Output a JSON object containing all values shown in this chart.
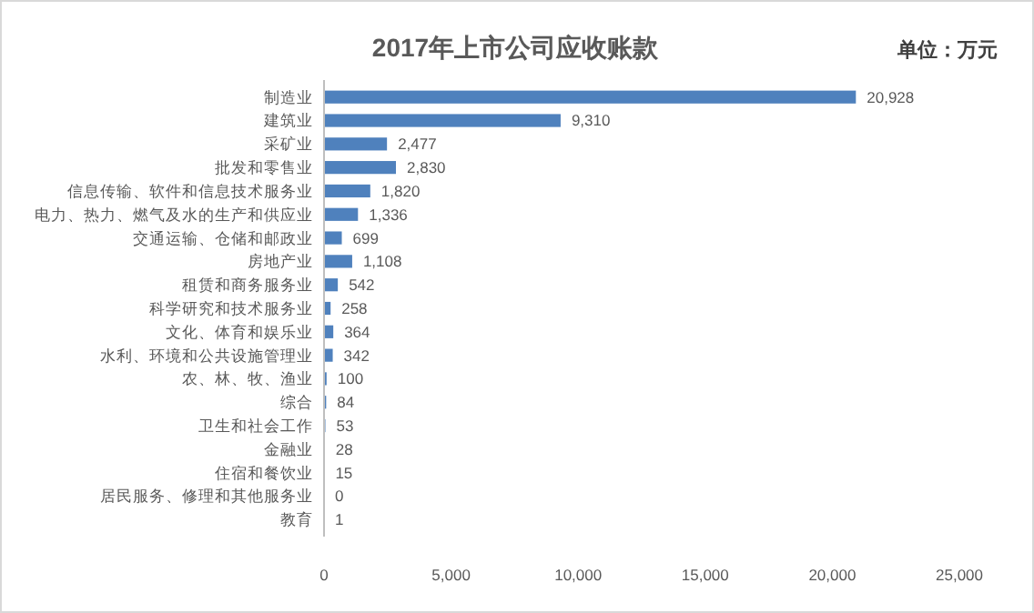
{
  "chart_data": {
    "type": "bar",
    "orientation": "horizontal",
    "title": "2017年上市公司应收账款",
    "annotations": [
      "单位：万元"
    ],
    "categories": [
      "制造业",
      "建筑业",
      "采矿业",
      "批发和零售业",
      "信息传输、软件和信息技术服务业",
      "电力、热力、燃气及水的生产和供应业",
      "交通运输、仓储和邮政业",
      "房地产业",
      "租赁和商务服务业",
      "科学研究和技术服务业",
      "文化、体育和娱乐业",
      "水利、环境和公共设施管理业",
      "农、林、牧、渔业",
      "综合",
      "卫生和社会工作",
      "金融业",
      "住宿和餐饮业",
      "居民服务、修理和其他服务业",
      "教育"
    ],
    "values": [
      20928,
      9310,
      2477,
      2830,
      1820,
      1336,
      699,
      1108,
      542,
      258,
      364,
      342,
      100,
      84,
      53,
      28,
      15,
      0,
      1
    ],
    "value_labels": [
      "20,928",
      "9,310",
      "2,477",
      "2,830",
      "1,820",
      "1,336",
      "699",
      "1,108",
      "542",
      "258",
      "364",
      "342",
      "100",
      "84",
      "53",
      "28",
      "15",
      "0",
      "1"
    ],
    "color": "#4f81bd",
    "xlim": [
      0,
      25000
    ],
    "xticks": [
      0,
      {
        "value": 5000,
        "label": "5,000"
      },
      {
        "value": 10000,
        "label": "10,000"
      },
      {
        "value": 15000,
        "label": "15,000"
      },
      {
        "value": 20000,
        "label": "20,000"
      },
      {
        "value": 25000,
        "label": "25,000"
      }
    ],
    "grid": false
  }
}
